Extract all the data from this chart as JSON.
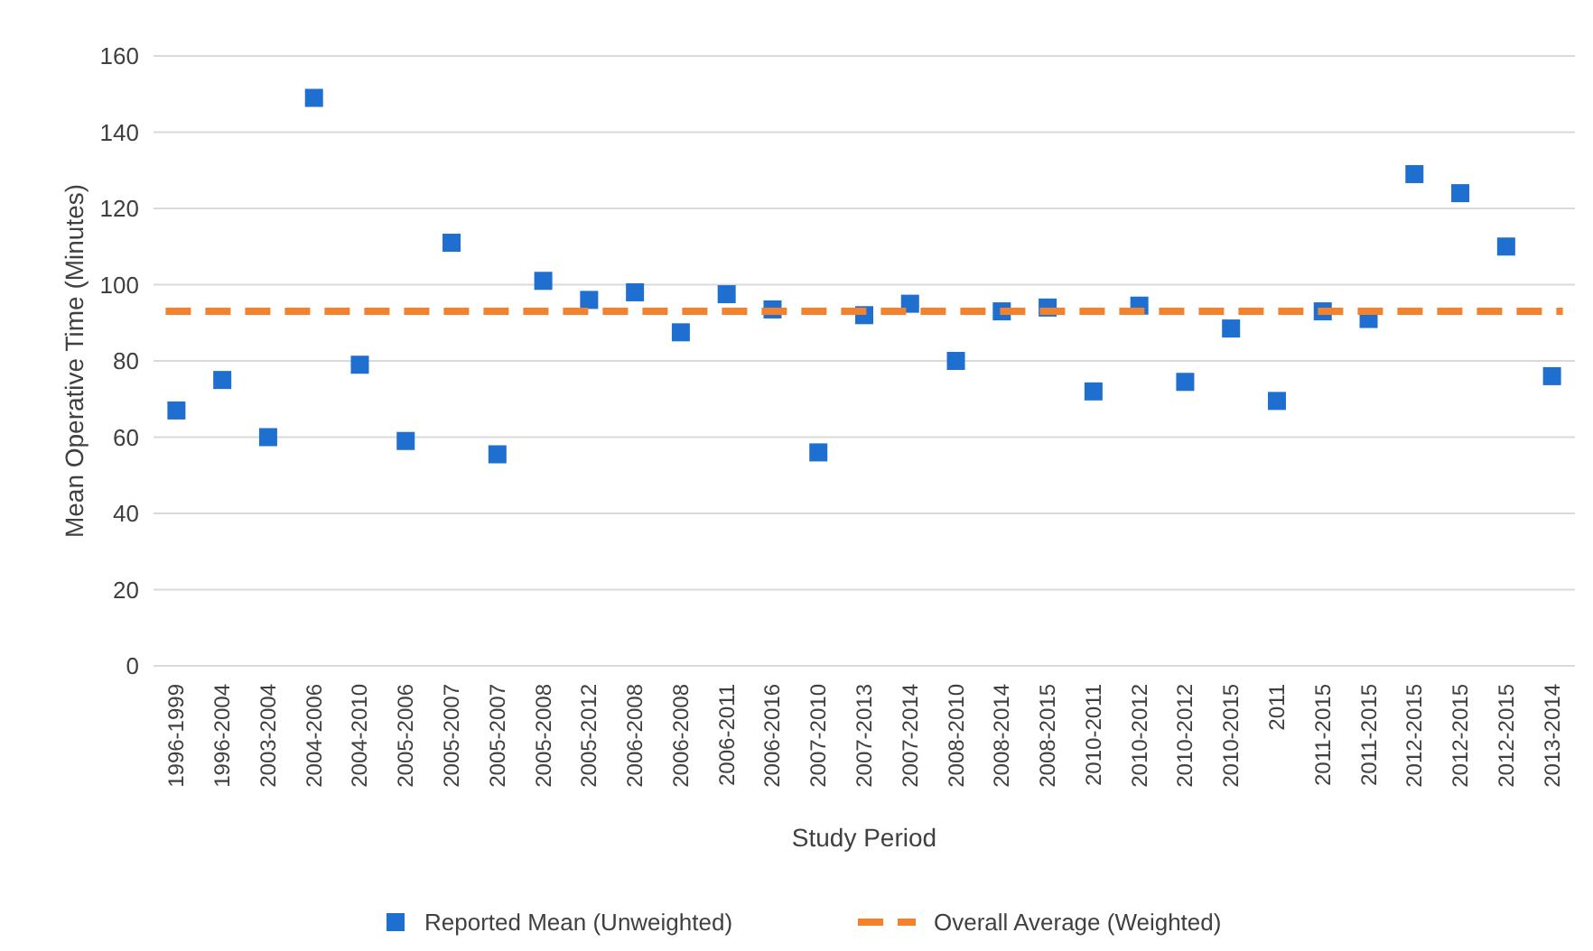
{
  "chart_data": {
    "type": "scatter",
    "xlabel": "Study Period",
    "ylabel": "Mean Operative Time (Minutes)",
    "categories": [
      "1996-1999",
      "1996-2004",
      "2003-2004",
      "2004-2006",
      "2004-2010",
      "2005-2006",
      "2005-2007",
      "2005-2007",
      "2005-2008",
      "2005-2012",
      "2006-2008",
      "2006-2008",
      "2006-2011",
      "2006-2016",
      "2007-2010",
      "2007-2013",
      "2007-2014",
      "2008-2010",
      "2008-2014",
      "2008-2015",
      "2010-2011",
      "2010-2012",
      "2010-2012",
      "2010-2015",
      "2011",
      "2011-2015",
      "2011-2015",
      "2012-2015",
      "2012-2015",
      "2012-2015",
      "2013-2014"
    ],
    "series": [
      {
        "name": "Reported Mean (Unweighted)",
        "color": "#1f6fd1",
        "values": [
          67,
          75,
          60,
          149,
          79,
          59,
          111,
          55.5,
          101,
          96,
          98,
          87.5,
          97.5,
          93.5,
          56,
          92,
          95,
          80,
          93,
          94,
          72,
          94.5,
          74.5,
          88.5,
          69.5,
          93,
          91,
          129,
          124,
          110,
          76
        ]
      }
    ],
    "ref_lines": [
      {
        "axis": "y",
        "value": 93,
        "label": "Overall Average (Weighted)",
        "color": "#f4812b",
        "line_style": "dashed"
      }
    ],
    "ylim": [
      0,
      160
    ],
    "yticks": [
      0,
      20,
      40,
      60,
      80,
      100,
      120,
      140,
      160
    ],
    "grid": "y",
    "legend": "bottom",
    "marker": "square"
  }
}
